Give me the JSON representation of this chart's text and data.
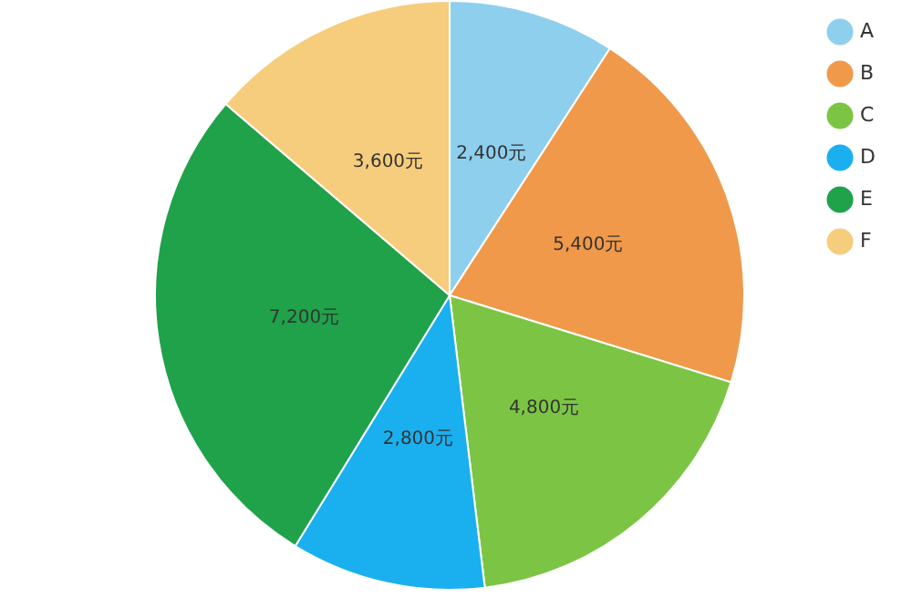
{
  "chart_data": {
    "type": "pie",
    "categories": [
      "A",
      "B",
      "C",
      "D",
      "E",
      "F"
    ],
    "values": [
      2400,
      5400,
      4800,
      2800,
      7200,
      3600
    ],
    "value_labels": [
      "2,400元",
      "5,400元",
      "4,800元",
      "2,800元",
      "7,200元",
      "3,600元"
    ],
    "colors": [
      "#8ecfee",
      "#f0994a",
      "#7cc544",
      "#1ab0ef",
      "#1fa24a",
      "#f6cd7c"
    ],
    "legend": "top right"
  }
}
